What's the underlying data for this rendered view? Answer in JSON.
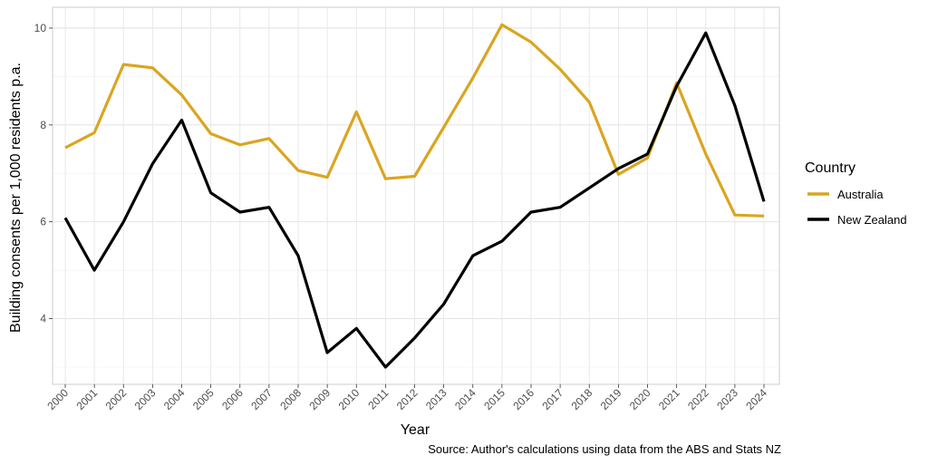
{
  "chart_data": {
    "type": "line",
    "xlabel": "Year",
    "ylabel": "Building consents per 1,000 residents p.a.",
    "caption": "Source: Author's calculations using data from the ABS and Stats NZ",
    "legend_title": "Country",
    "legend_position": "right",
    "grid": true,
    "xlim": [
      2000,
      2024
    ],
    "ylim": [
      2.7,
      10.4
    ],
    "x": [
      2000,
      2001,
      2002,
      2003,
      2004,
      2005,
      2006,
      2007,
      2008,
      2009,
      2010,
      2011,
      2012,
      2013,
      2014,
      2015,
      2016,
      2017,
      2018,
      2019,
      2020,
      2021,
      2022,
      2023,
      2024
    ],
    "x_tick_labels": [
      "2000",
      "2001",
      "2002",
      "2003",
      "2004",
      "2005",
      "2006",
      "2007",
      "2008",
      "2009",
      "2010",
      "2011",
      "2012",
      "2013",
      "2014",
      "2015",
      "2016",
      "2017",
      "2018",
      "2019",
      "2020",
      "2021",
      "2022",
      "2023",
      "2024"
    ],
    "y_ticks": [
      4,
      6,
      8,
      10
    ],
    "y_tick_labels": [
      "4",
      "6",
      "8",
      "10"
    ],
    "series": [
      {
        "name": "Australia",
        "color": "#DAA520",
        "values": [
          7.53,
          7.84,
          9.25,
          9.18,
          8.62,
          7.82,
          7.59,
          7.72,
          7.06,
          6.92,
          8.27,
          6.89,
          6.94,
          7.95,
          8.97,
          10.07,
          9.71,
          9.15,
          8.47,
          6.98,
          7.32,
          8.87,
          7.4,
          6.14,
          6.12
        ]
      },
      {
        "name": "New Zealand",
        "color": "#000000",
        "values": [
          6.08,
          5.0,
          6.0,
          7.2,
          8.1,
          6.6,
          6.2,
          6.3,
          5.3,
          3.3,
          3.8,
          3.0,
          3.6,
          4.3,
          5.3,
          5.6,
          6.2,
          6.3,
          6.7,
          7.1,
          7.4,
          8.8,
          9.9,
          8.4,
          6.42
        ]
      }
    ]
  }
}
